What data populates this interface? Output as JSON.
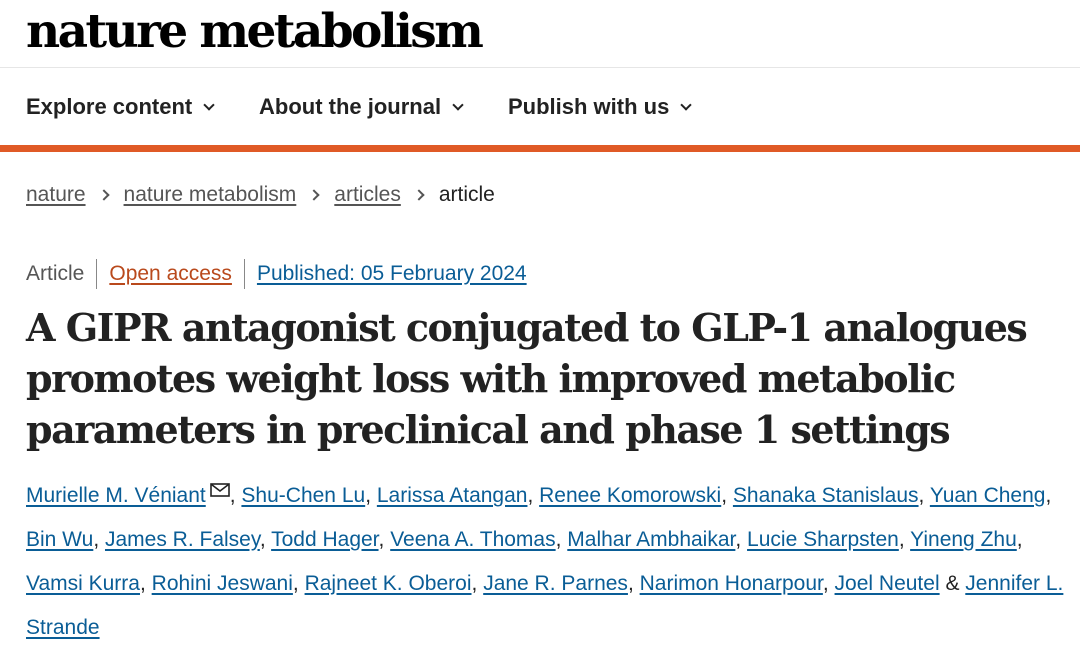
{
  "site": {
    "logo": "nature metabolism"
  },
  "nav": {
    "items": [
      {
        "label": "Explore content"
      },
      {
        "label": "About the journal"
      },
      {
        "label": "Publish with us"
      }
    ]
  },
  "breadcrumb": {
    "items": [
      "nature",
      "nature metabolism",
      "articles"
    ],
    "current": "article"
  },
  "article": {
    "type": "Article",
    "access": "Open access",
    "published": "Published: 05 February 2024",
    "title": "A GIPR antagonist conjugated to GLP-1 analogues promotes weight loss with improved metabolic parameters in preclinical and phase 1 settings",
    "authors": [
      "Murielle M. Véniant",
      "Shu-Chen Lu",
      "Larissa Atangan",
      "Renee Komorowski",
      "Shanaka Stanislaus",
      "Yuan Cheng",
      "Bin Wu",
      "James R. Falsey",
      "Todd Hager",
      "Veena A. Thomas",
      "Malhar Ambhaikar",
      "Lucie Sharpsten",
      "Yineng Zhu",
      "Vamsi Kurra",
      "Rohini Jeswani",
      "Rajneet K. Oberoi",
      "Jane R. Parnes",
      "Narimon Honarpour",
      "Joel Neutel",
      "Jennifer L. Strande"
    ],
    "separator": ",",
    "last_separator": "&"
  },
  "icons": {
    "chevron": "chevron-down-icon",
    "breadcrumb_separator": "chevron-right-icon",
    "corresponding_author": "mail-icon"
  },
  "colors": {
    "accent_orange": "#e05a26",
    "open_access": "#b9491c",
    "link_blue": "#0a5d96",
    "text": "#222222",
    "muted": "#555555"
  }
}
